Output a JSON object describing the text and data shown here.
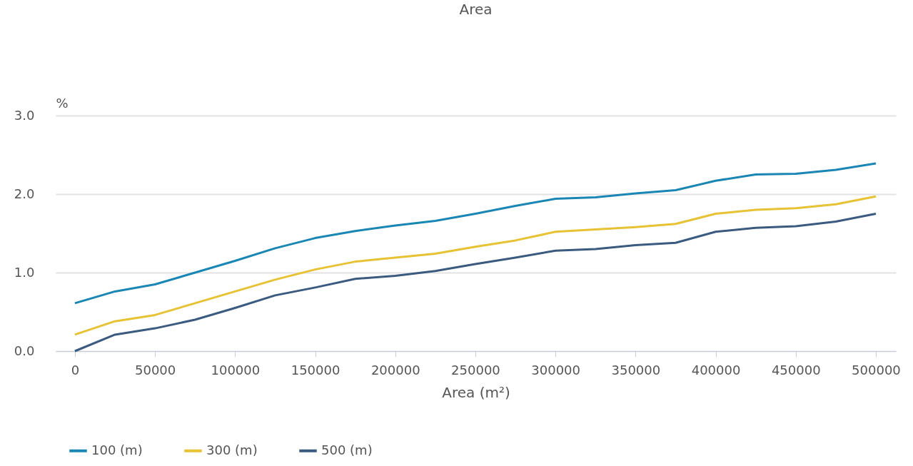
{
  "chart_data": {
    "type": "line",
    "title": "Area",
    "xlabel": "Area (m²)",
    "ylabel": "%",
    "x": [
      0,
      25000,
      50000,
      75000,
      100000,
      125000,
      150000,
      175000,
      200000,
      225000,
      250000,
      275000,
      300000,
      325000,
      350000,
      375000,
      400000,
      425000,
      450000,
      475000,
      500000
    ],
    "series": [
      {
        "name": "100 (m)",
        "color": "#1a86b4",
        "values": [
          0.61,
          0.76,
          0.85,
          1.0,
          1.15,
          1.31,
          1.44,
          1.53,
          1.6,
          1.66,
          1.75,
          1.85,
          1.94,
          1.96,
          2.01,
          2.05,
          2.17,
          2.25,
          2.26,
          2.31,
          2.39
        ]
      },
      {
        "name": "300 (m)",
        "color": "#e6c234",
        "values": [
          0.21,
          0.38,
          0.46,
          0.61,
          0.76,
          0.91,
          1.04,
          1.14,
          1.19,
          1.24,
          1.33,
          1.41,
          1.52,
          1.55,
          1.58,
          1.62,
          1.75,
          1.8,
          1.82,
          1.87,
          1.97
        ]
      },
      {
        "name": "500 (m)",
        "color": "#3a5a7f",
        "values": [
          0.0,
          0.21,
          0.29,
          0.4,
          0.55,
          0.71,
          0.81,
          0.92,
          0.96,
          1.02,
          1.11,
          1.19,
          1.28,
          1.3,
          1.35,
          1.38,
          1.52,
          1.57,
          1.59,
          1.65,
          1.75
        ]
      }
    ],
    "xlim": [
      -12000,
      512500
    ],
    "xticks": [
      0,
      50000,
      100000,
      150000,
      200000,
      250000,
      300000,
      350000,
      400000,
      450000,
      500000
    ],
    "ylim": [
      0,
      3
    ],
    "yticks": [
      {
        "value": 0,
        "label": "0.0"
      },
      {
        "value": 1,
        "label": "1.0"
      },
      {
        "value": 2,
        "label": "2.0"
      },
      {
        "value": 3,
        "label": "3.0"
      }
    ],
    "grid": "y",
    "legend": "bottom left",
    "marker": "none",
    "line_style": "solid"
  }
}
